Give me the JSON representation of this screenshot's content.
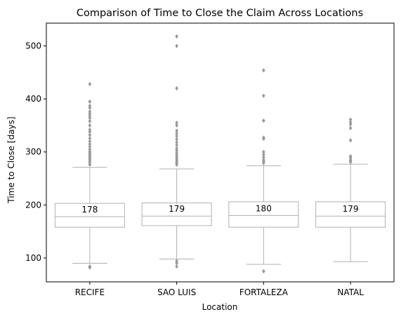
{
  "chart_data": {
    "type": "box",
    "title": "Comparison of Time to Close the Claim Across Locations",
    "xlabel": "Location",
    "ylabel": "Time to Close [days]",
    "ylim": [
      55,
      543
    ],
    "yticks": [
      100,
      200,
      300,
      400,
      500
    ],
    "grid": false,
    "box_color": "#ffffff",
    "line_color": "#b0b0b0",
    "outlier_color": "#999999",
    "categories": [
      "RECIFE",
      "SAO LUIS",
      "FORTALEZA",
      "NATAL"
    ],
    "boxes": [
      {
        "name": "RECIFE",
        "whisker_low": 90,
        "q1": 158,
        "median": 178,
        "q3": 203,
        "whisker_high": 271,
        "median_label": "178",
        "outliers": [
          82,
          84,
          276,
          280,
          283,
          286,
          289,
          292,
          295,
          298,
          301,
          305,
          310,
          315,
          320,
          326,
          332,
          338,
          342,
          350,
          358,
          364,
          368,
          372,
          376,
          383,
          387,
          395,
          428
        ]
      },
      {
        "name": "SAO LUIS",
        "whisker_low": 98,
        "q1": 161,
        "median": 179,
        "q3": 204,
        "whisker_high": 268,
        "median_label": "179",
        "outliers": [
          84,
          90,
          94,
          276,
          279,
          282,
          285,
          288,
          291,
          295,
          299,
          303,
          307,
          313,
          318,
          324,
          330,
          335,
          340,
          350,
          355,
          420,
          500,
          518
        ]
      },
      {
        "name": "FORTALEZA",
        "whisker_low": 88,
        "q1": 158,
        "median": 180,
        "q3": 206,
        "whisker_high": 274,
        "median_label": "180",
        "outliers": [
          75,
          279,
          282,
          285,
          290,
          295,
          300,
          325,
          327,
          359,
          406,
          454
        ]
      },
      {
        "name": "NATAL",
        "whisker_low": 93,
        "q1": 158,
        "median": 179,
        "q3": 206,
        "whisker_high": 277,
        "median_label": "179",
        "outliers": [
          281,
          283,
          285,
          289,
          292,
          322,
          345,
          352,
          356,
          361
        ]
      }
    ]
  }
}
